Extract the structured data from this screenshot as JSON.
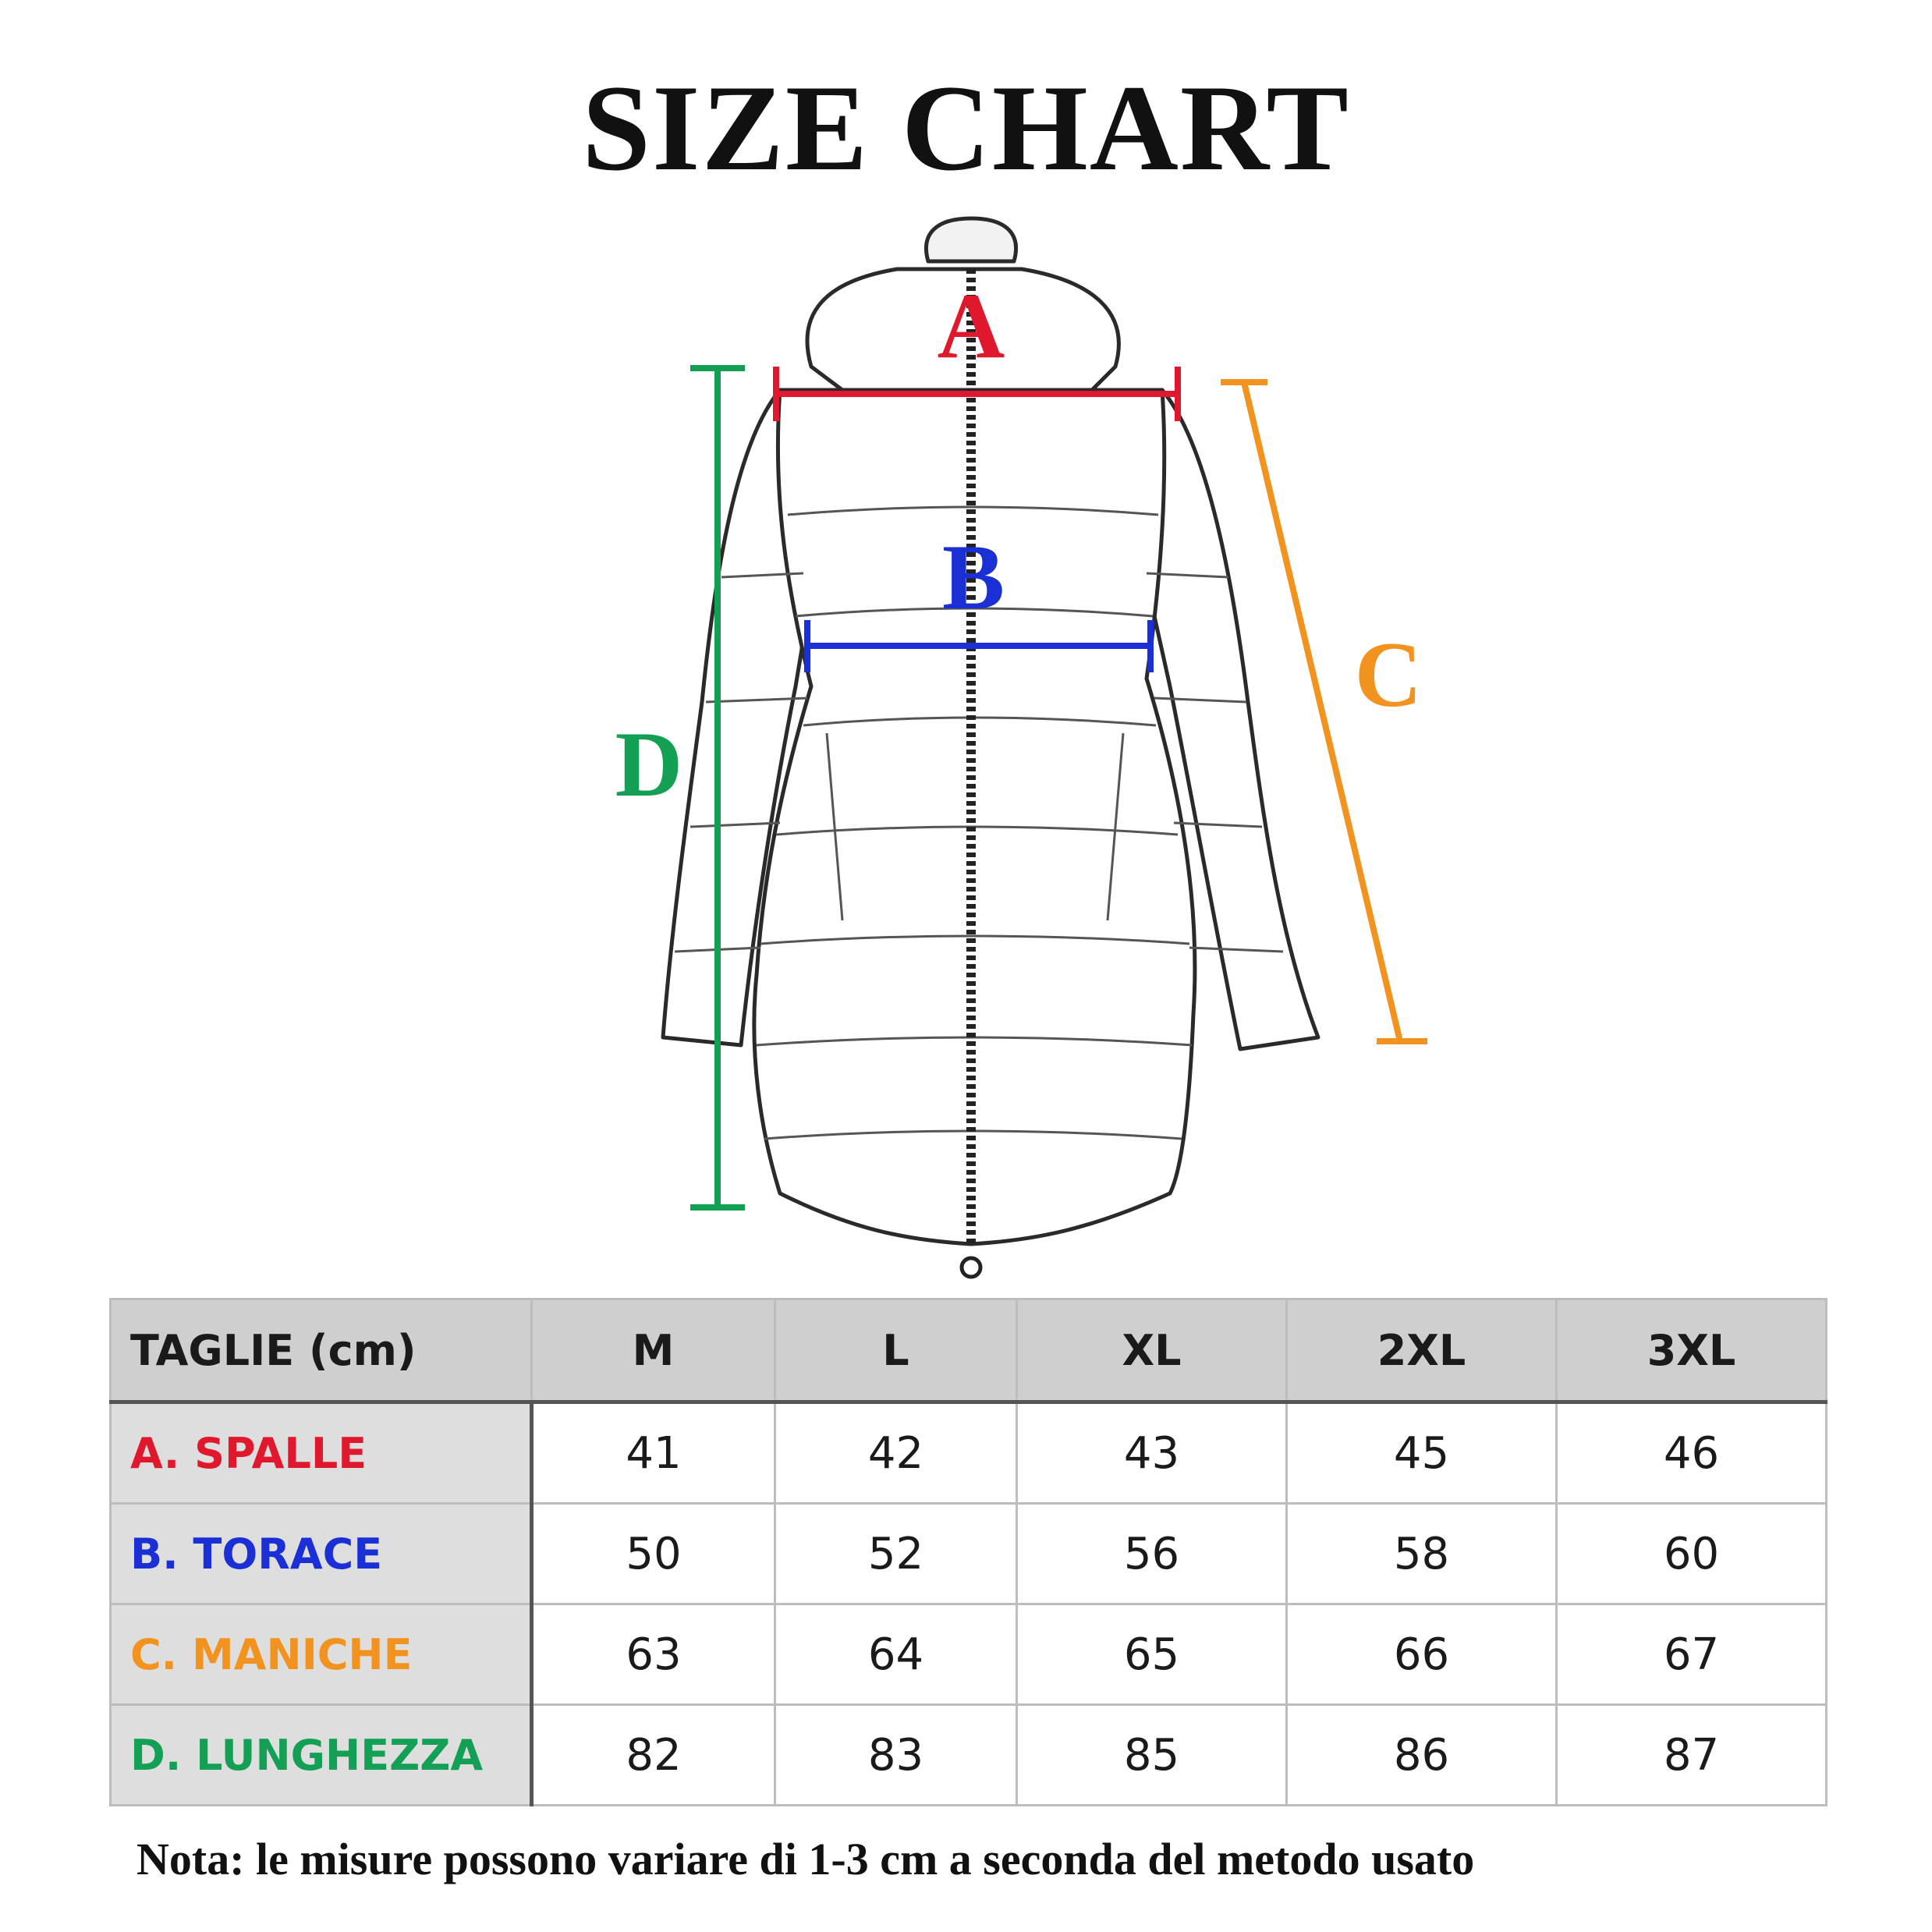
{
  "title": "SIZE CHART",
  "diagram": {
    "icon": "puffer-jacket-sketch",
    "labels": {
      "A": {
        "text": "A",
        "color": "#e0182d"
      },
      "B": {
        "text": "B",
        "color": "#1a2fd6"
      },
      "C": {
        "text": "C",
        "color": "#f2921f"
      },
      "D": {
        "text": "D",
        "color": "#13a055"
      }
    }
  },
  "chart_data": {
    "type": "table",
    "columns": [
      "TAGLIE (cm)",
      "M",
      "L",
      "XL",
      "2XL",
      "3XL"
    ],
    "sizes": [
      "M",
      "L",
      "XL",
      "2XL",
      "3XL"
    ],
    "rows": [
      {
        "prefix": "A.",
        "label": "SPALLE",
        "color": "#e0182d",
        "values": [
          41,
          42,
          43,
          45,
          46
        ]
      },
      {
        "prefix": "B.",
        "label": "TORACE",
        "color": "#1a2fd6",
        "values": [
          50,
          52,
          56,
          58,
          60
        ]
      },
      {
        "prefix": "C.",
        "label": "MANICHE",
        "color": "#f2921f",
        "values": [
          63,
          64,
          65,
          66,
          67
        ]
      },
      {
        "prefix": "D.",
        "label": "LUNGHEZZA",
        "color": "#13a055",
        "values": [
          82,
          83,
          85,
          86,
          87
        ]
      }
    ]
  },
  "note": "Nota: le misure possono variare di 1-3 cm a seconda del metodo usato"
}
